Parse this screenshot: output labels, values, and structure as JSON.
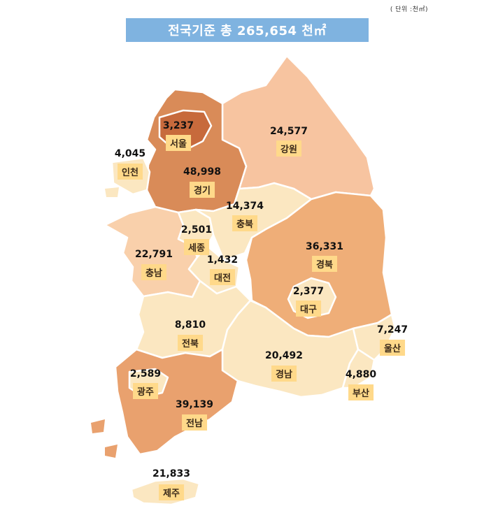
{
  "unit_label": "( 단위 :천㎡)",
  "banner": {
    "text": "전국기준 총 265,654 천㎡",
    "color": "#7fb3e0"
  },
  "regions": [
    {
      "id": "seoul",
      "name": "서울",
      "value": "3,237",
      "color": "#c76a3c"
    },
    {
      "id": "incheon",
      "name": "인천",
      "value": "4,045",
      "color": "#fbe7c1"
    },
    {
      "id": "gyeonggi",
      "name": "경기",
      "value": "48,998",
      "color": "#d98b58"
    },
    {
      "id": "gangwon",
      "name": "강원",
      "value": "24,577",
      "color": "#f7c4a0"
    },
    {
      "id": "chungbuk",
      "name": "충북",
      "value": "14,374",
      "color": "#fbe7c1"
    },
    {
      "id": "sejong",
      "name": "세종",
      "value": "2,501",
      "color": "#fbe7c1"
    },
    {
      "id": "chungnam",
      "name": "충남",
      "value": "22,791",
      "color": "#f9d0ab"
    },
    {
      "id": "daejeon",
      "name": "대전",
      "value": "1,432",
      "color": "#fbe7c1"
    },
    {
      "id": "gyeongbuk",
      "name": "경북",
      "value": "36,331",
      "color": "#efae78"
    },
    {
      "id": "daegu",
      "name": "대구",
      "value": "2,377",
      "color": "#fbe7c1"
    },
    {
      "id": "jeonbuk",
      "name": "전북",
      "value": "8,810",
      "color": "#fbe7c1"
    },
    {
      "id": "gyeongnam",
      "name": "경남",
      "value": "20,492",
      "color": "#fbe7c1"
    },
    {
      "id": "ulsan",
      "name": "울산",
      "value": "7,247",
      "color": "#fbe7c1"
    },
    {
      "id": "busan",
      "name": "부산",
      "value": "4,880",
      "color": "#fbe7c1"
    },
    {
      "id": "gwangju",
      "name": "광주",
      "value": "2,589",
      "color": "#fbe7c1"
    },
    {
      "id": "jeonnam",
      "name": "전남",
      "value": "39,139",
      "color": "#e9a16e"
    },
    {
      "id": "jeju",
      "name": "제주",
      "value": "21,833",
      "color": "#fbe7c1"
    }
  ]
}
